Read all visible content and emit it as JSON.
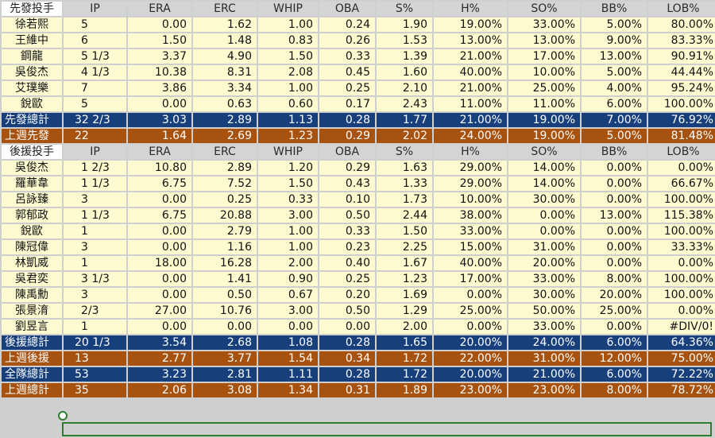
{
  "sheet": {
    "starter_header": [
      "先發投手",
      "IP",
      "ERA",
      "ERC",
      "WHIP",
      "OBA",
      "S%",
      "H%",
      "SO%",
      "BB%",
      "LOB%"
    ],
    "starters": [
      [
        "徐若熙",
        "5",
        "0.00",
        "1.62",
        "1.00",
        "0.24",
        "1.90",
        "19.00%",
        "33.00%",
        "5.00%",
        "80.00%"
      ],
      [
        "王維中",
        "6",
        "1.50",
        "1.48",
        "0.83",
        "0.26",
        "1.53",
        "13.00%",
        "13.00%",
        "9.00%",
        "83.33%"
      ],
      [
        "鋼龍",
        "5 1/3",
        "3.37",
        "4.90",
        "1.50",
        "0.33",
        "1.39",
        "21.00%",
        "17.00%",
        "13.00%",
        "90.91%"
      ],
      [
        "吳俊杰",
        "4 1/3",
        "10.38",
        "8.31",
        "2.08",
        "0.45",
        "1.60",
        "40.00%",
        "10.00%",
        "5.00%",
        "44.44%"
      ],
      [
        "艾璞樂",
        "7",
        "3.86",
        "3.34",
        "1.00",
        "0.25",
        "2.10",
        "21.00%",
        "25.00%",
        "4.00%",
        "95.24%"
      ],
      [
        "銳歐",
        "5",
        "0.00",
        "0.63",
        "0.60",
        "0.17",
        "2.43",
        "11.00%",
        "11.00%",
        "6.00%",
        "100.00%"
      ]
    ],
    "starter_total": [
      "先發總計",
      "32 2/3",
      "3.03",
      "2.89",
      "1.13",
      "0.28",
      "1.77",
      "21.00%",
      "19.00%",
      "7.00%",
      "76.92%"
    ],
    "starter_last_week": [
      "上週先發",
      "22",
      "1.64",
      "2.69",
      "1.23",
      "0.29",
      "2.02",
      "24.00%",
      "19.00%",
      "5.00%",
      "81.48%"
    ],
    "reliever_header": [
      "後援投手",
      "IP",
      "ERA",
      "ERC",
      "WHIP",
      "OBA",
      "S%",
      "H%",
      "SO%",
      "BB%",
      "LOB%"
    ],
    "relievers": [
      [
        "吳俊杰",
        "1 2/3",
        "10.80",
        "2.89",
        "1.20",
        "0.29",
        "1.63",
        "29.00%",
        "14.00%",
        "0.00%",
        "0.00%"
      ],
      [
        "羅華韋",
        "1 1/3",
        "6.75",
        "7.52",
        "1.50",
        "0.43",
        "1.33",
        "29.00%",
        "14.00%",
        "0.00%",
        "66.67%"
      ],
      [
        "呂詠臻",
        "3",
        "0.00",
        "0.25",
        "0.33",
        "0.10",
        "1.73",
        "10.00%",
        "30.00%",
        "0.00%",
        "100.00%"
      ],
      [
        "郭郁政",
        "1 1/3",
        "6.75",
        "20.88",
        "3.00",
        "0.50",
        "2.44",
        "38.00%",
        "0.00%",
        "13.00%",
        "115.38%"
      ],
      [
        "銳歐",
        "1",
        "0.00",
        "2.79",
        "1.00",
        "0.33",
        "1.50",
        "33.00%",
        "0.00%",
        "0.00%",
        "100.00%"
      ],
      [
        "陳冠偉",
        "3",
        "0.00",
        "1.16",
        "1.00",
        "0.23",
        "2.25",
        "15.00%",
        "31.00%",
        "0.00%",
        "33.33%"
      ],
      [
        "林凱威",
        "1",
        "18.00",
        "16.28",
        "2.00",
        "0.40",
        "1.67",
        "40.00%",
        "20.00%",
        "0.00%",
        "0.00%"
      ],
      [
        "吳君奕",
        "3 1/3",
        "0.00",
        "1.41",
        "0.90",
        "0.25",
        "1.23",
        "17.00%",
        "33.00%",
        "8.00%",
        "100.00%"
      ],
      [
        "陳禹勳",
        "3",
        "0.00",
        "0.50",
        "0.67",
        "0.20",
        "1.69",
        "0.00%",
        "30.00%",
        "20.00%",
        "100.00%"
      ],
      [
        "張景淯",
        "2/3",
        "27.00",
        "10.76",
        "3.00",
        "0.50",
        "1.29",
        "25.00%",
        "50.00%",
        "25.00%",
        "0.00%"
      ],
      [
        "劉昱言",
        "1",
        "0.00",
        "0.00",
        "0.00",
        "0.00",
        "2.00",
        "0.00%",
        "33.00%",
        "0.00%",
        "#DIV/0!"
      ]
    ],
    "reliever_total": [
      "後援總計",
      "20 1/3",
      "3.54",
      "2.68",
      "1.08",
      "0.28",
      "1.65",
      "20.00%",
      "24.00%",
      "6.00%",
      "64.36%"
    ],
    "reliever_last_week": [
      "上週後援",
      "13",
      "2.77",
      "3.77",
      "1.54",
      "0.34",
      "1.72",
      "22.00%",
      "31.00%",
      "12.00%",
      "75.00%"
    ],
    "team_total": [
      "全隊總計",
      "53",
      "3.23",
      "2.81",
      "1.11",
      "0.28",
      "1.72",
      "20.00%",
      "21.00%",
      "6.00%",
      "72.22%"
    ],
    "team_last_week": [
      "上週總計",
      "35",
      "2.06",
      "3.08",
      "1.34",
      "0.31",
      "1.89",
      "23.00%",
      "23.00%",
      "8.00%",
      "78.72%"
    ]
  },
  "colors": {
    "data_row_bg": "#fffbd0",
    "total_blue": "#173f7c",
    "last_week_orange": "#a8520f",
    "header_gray": "#d4d4d4",
    "selection_green": "#2e7d32"
  }
}
